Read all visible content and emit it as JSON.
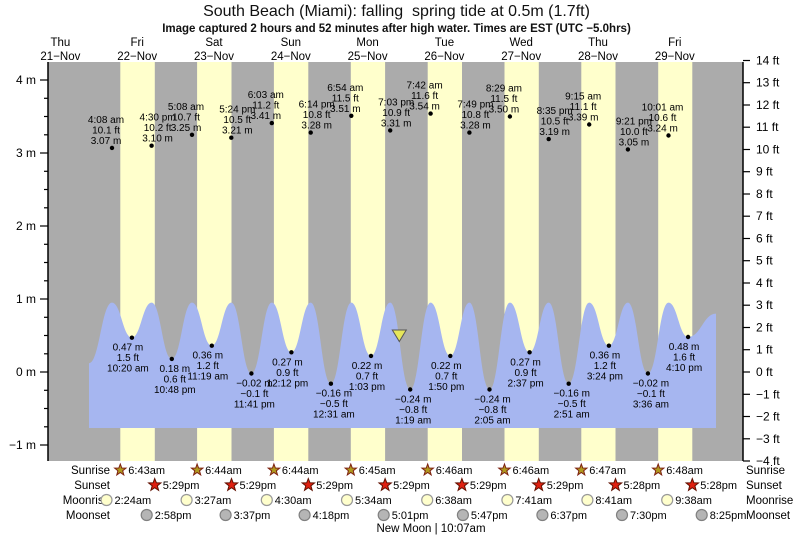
{
  "title": "South Beach (Miami): falling  spring tide at 0.5m (1.7ft)",
  "subtitle": "Image captured 2 hours and 52 minutes after high water. Times are EST (UTC −5.0hrs)",
  "colors": {
    "night_band": "#ababab",
    "daylight_band": "#ffffcc",
    "wave": "#a6b6f0",
    "day_label": "#ee3333",
    "axis": "#000000",
    "sunrise_star_fill": "#b0991e",
    "sunrise_star_stroke": "#7d2010",
    "sunset_star_fill": "#e02010",
    "sunset_star_stroke": "#601000",
    "moonrise_fill": "#ffffcc",
    "moonrise_stroke": "#999999",
    "moonset_fill": "#b5b5b5",
    "moonset_stroke": "#808080",
    "capture_marker_fill": "#e6e65a",
    "capture_marker_stroke": "#555555"
  },
  "chart_data": {
    "type": "area",
    "title": "South Beach (Miami): falling  spring tide at 0.5m (1.7ft)",
    "unit_left": "m",
    "unit_right": "ft",
    "y_left_ticks": [
      4,
      3,
      2,
      1,
      0,
      -1
    ],
    "y_right_ticks": [
      14,
      13,
      12,
      11,
      10,
      9,
      8,
      7,
      6,
      5,
      4,
      3,
      2,
      1,
      0,
      -1,
      -2,
      -3,
      -4
    ],
    "days": [
      {
        "weekday": "Thu",
        "date": "21−Nov"
      },
      {
        "weekday": "Fri",
        "date": "22−Nov"
      },
      {
        "weekday": "Sat",
        "date": "23−Nov"
      },
      {
        "weekday": "Sun",
        "date": "24−Nov"
      },
      {
        "weekday": "Mon",
        "date": "25−Nov"
      },
      {
        "weekday": "Tue",
        "date": "26−Nov"
      },
      {
        "weekday": "Wed",
        "date": "27−Nov"
      },
      {
        "weekday": "Thu",
        "date": "28−Nov"
      },
      {
        "weekday": "Fri",
        "date": "29−Nov"
      }
    ],
    "high_tides": [
      {
        "day": 1,
        "time": "4:08 am",
        "ft": 10.1,
        "m": 3.07
      },
      {
        "day": 1,
        "time": "4:30 pm",
        "ft": 10.2,
        "m": 3.1
      },
      {
        "day": 2,
        "time": "5:08 am",
        "ft": 10.7,
        "m": 3.25
      },
      {
        "day": 2,
        "time": "5:24 pm",
        "ft": 10.5,
        "m": 3.21
      },
      {
        "day": 3,
        "time": "6:03 am",
        "ft": 11.2,
        "m": 3.41
      },
      {
        "day": 3,
        "time": "6:14 pm",
        "ft": 10.8,
        "m": 3.28
      },
      {
        "day": 4,
        "time": "6:54 am",
        "ft": 11.5,
        "m": 3.51
      },
      {
        "day": 4,
        "time": "7:03 pm",
        "ft": 10.9,
        "m": 3.31
      },
      {
        "day": 5,
        "time": "7:42 am",
        "ft": 11.6,
        "m": 3.54
      },
      {
        "day": 5,
        "time": "7:49 pm",
        "ft": 10.8,
        "m": 3.28
      },
      {
        "day": 6,
        "time": "8:29 am",
        "ft": 11.5,
        "m": 3.5
      },
      {
        "day": 6,
        "time": "8:35 pm",
        "ft": 10.5,
        "m": 3.19
      },
      {
        "day": 7,
        "time": "9:15 am",
        "ft": 11.1,
        "m": 3.39
      },
      {
        "day": 7,
        "time": "9:21 pm",
        "ft": 10.0,
        "m": 3.05
      },
      {
        "day": 8,
        "time": "10:01 am",
        "ft": 10.6,
        "m": 3.24
      }
    ],
    "low_tides": [
      {
        "day": 1,
        "time": "10:20 am",
        "ft": 1.5,
        "m": 0.47
      },
      {
        "day": 1,
        "time": "10:48 pm",
        "ft": 0.6,
        "m": 0.18
      },
      {
        "day": 2,
        "time": "11:19 am",
        "ft": 1.2,
        "m": 0.36
      },
      {
        "day": 2,
        "time": "11:41 pm",
        "ft": -0.1,
        "m": -0.02
      },
      {
        "day": 3,
        "time": "12:12 pm",
        "ft": 0.9,
        "m": 0.27
      },
      {
        "day": 4,
        "time": "12:31 am",
        "ft": -0.5,
        "m": -0.16
      },
      {
        "day": 4,
        "time": "1:03 pm",
        "ft": 0.7,
        "m": 0.22
      },
      {
        "day": 5,
        "time": "1:19 am",
        "ft": -0.8,
        "m": -0.24
      },
      {
        "day": 5,
        "time": "1:50 pm",
        "ft": 0.7,
        "m": 0.22
      },
      {
        "day": 6,
        "time": "2:05 am",
        "ft": -0.8,
        "m": -0.24
      },
      {
        "day": 6,
        "time": "2:37 pm",
        "ft": 0.9,
        "m": 0.27
      },
      {
        "day": 7,
        "time": "2:51 am",
        "ft": -0.5,
        "m": -0.16
      },
      {
        "day": 7,
        "time": "3:24 pm",
        "ft": 1.2,
        "m": 0.36
      },
      {
        "day": 8,
        "time": "3:36 am",
        "ft": -0.1,
        "m": -0.02
      },
      {
        "day": 8,
        "time": "4:10 pm",
        "ft": 1.6,
        "m": 0.48
      }
    ],
    "sun_moon_rows": [
      {
        "label": "Sunrise",
        "icon": "sunrise-star",
        "times": [
          "6:43am",
          "6:44am",
          "6:44am",
          "6:45am",
          "6:46am",
          "6:46am",
          "6:47am",
          "6:48am"
        ]
      },
      {
        "label": "Sunset",
        "icon": "sunset-star",
        "times": [
          "5:29pm",
          "5:29pm",
          "5:29pm",
          "5:29pm",
          "5:29pm",
          "5:29pm",
          "5:28pm",
          "5:28pm"
        ]
      },
      {
        "label": "Moonrise",
        "icon": "moonrise-circle",
        "times": [
          "2:24am",
          "3:27am",
          "4:30am",
          "5:34am",
          "6:38am",
          "7:41am",
          "8:41am",
          "9:38am"
        ]
      },
      {
        "label": "Moonset",
        "icon": "moonset-circle",
        "times": [
          "2:58pm",
          "3:37pm",
          "4:18pm",
          "5:01pm",
          "5:47pm",
          "6:37pm",
          "7:30pm",
          "8:25pm"
        ]
      }
    ],
    "moon_phase": "New Moon | 10:07am",
    "capture_marker": {
      "day": 4,
      "time": "9:55 pm",
      "height_m": 0.5
    }
  }
}
